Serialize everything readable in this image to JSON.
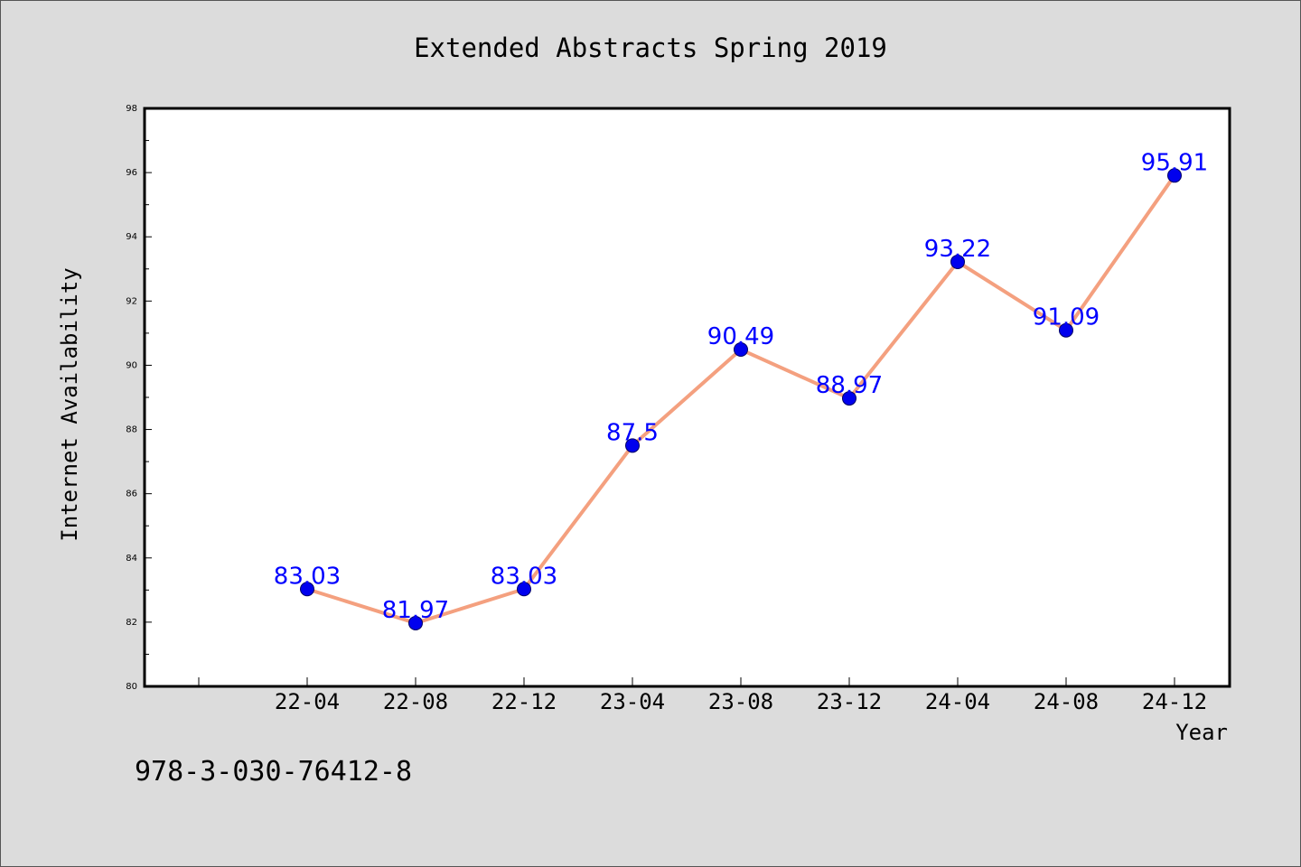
{
  "colors": {
    "background": "#dcdcdc",
    "plot_background": "#ffffff",
    "line": "#f4a07f",
    "marker": "#0000ee",
    "data_label": "#0000ff",
    "text": "#000000"
  },
  "footer_text": "978-3-030-76412-8",
  "chart_data": {
    "type": "line",
    "title": "Extended Abstracts Spring 2019",
    "xlabel": "Year",
    "ylabel": "Internet Availability",
    "categories": [
      "22-04",
      "22-08",
      "22-12",
      "23-04",
      "23-08",
      "23-12",
      "24-04",
      "24-08",
      "24-12"
    ],
    "series": [
      {
        "values": [
          83.03,
          81.97,
          83.03,
          87.5,
          90.49,
          88.97,
          93.22,
          91.09,
          95.91
        ],
        "labels": [
          "83.03",
          "81.97",
          "83.03",
          "87.5",
          "90.49",
          "88.97",
          "93.22",
          "91.09",
          "95.91"
        ]
      }
    ],
    "ylim": [
      80,
      98
    ],
    "yticks": [
      80,
      82,
      84,
      86,
      88,
      90,
      92,
      94,
      96,
      98
    ],
    "grid": false,
    "legend": "none"
  }
}
